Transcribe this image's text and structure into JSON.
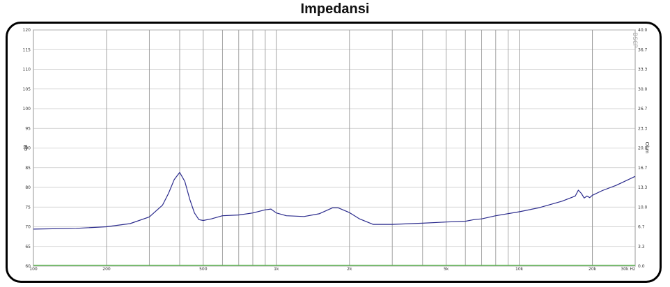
{
  "page": {
    "title": "Impedansi"
  },
  "chart_data": {
    "type": "line",
    "title": "Impedansi",
    "x_scale": "log",
    "xlim": [
      100,
      30000
    ],
    "ylim": [
      60,
      120
    ],
    "ylim_right": [
      0,
      40
    ],
    "ylabel": "dB",
    "ylabel_right": "Ohm",
    "xlabel": "",
    "grid": true,
    "watermark": "DSCP",
    "x_ticks": [
      {
        "v": 100,
        "label": "100"
      },
      {
        "v": 200,
        "label": "200"
      },
      {
        "v": 500,
        "label": "500"
      },
      {
        "v": 1000,
        "label": "1k"
      },
      {
        "v": 2000,
        "label": "2k"
      },
      {
        "v": 5000,
        "label": "5k"
      },
      {
        "v": 10000,
        "label": "10k"
      },
      {
        "v": 20000,
        "label": "20k"
      },
      {
        "v": 30000,
        "label": "30k Hz"
      }
    ],
    "y_ticks": [
      "120",
      "115",
      "110",
      "105",
      "100",
      "95",
      "90",
      "85",
      "80",
      "75",
      "70",
      "65",
      "60"
    ],
    "y_ticks_right": [
      "40.0",
      "36.7",
      "33.3",
      "30.0",
      "26.7",
      "23.3",
      "20.0",
      "16.7",
      "13.3",
      "10.0",
      "6.7",
      "3.3",
      "0.0"
    ],
    "series": [
      {
        "color": "#2a2a8c",
        "axis": "left",
        "x": [
          100,
          150,
          200,
          250,
          300,
          340,
          360,
          380,
          400,
          420,
          440,
          460,
          480,
          500,
          540,
          600,
          700,
          800,
          900,
          950,
          1000,
          1100,
          1300,
          1500,
          1700,
          1800,
          2000,
          2200,
          2500,
          3000,
          4000,
          5000,
          6000,
          6500,
          7000,
          8000,
          10000,
          12000,
          15000,
          17000,
          17500,
          18000,
          18500,
          19000,
          19500,
          20000,
          22000,
          25000,
          30000
        ],
        "y": [
          69.4,
          69.6,
          70.0,
          70.8,
          72.5,
          75.5,
          78.5,
          82.0,
          83.8,
          81.5,
          77.0,
          73.5,
          71.8,
          71.6,
          72.0,
          72.8,
          73.0,
          73.5,
          74.3,
          74.5,
          73.5,
          72.8,
          72.6,
          73.3,
          74.8,
          74.8,
          73.6,
          72.0,
          70.6,
          70.6,
          70.9,
          71.2,
          71.4,
          71.8,
          72.0,
          72.8,
          73.8,
          74.8,
          76.5,
          77.8,
          79.3,
          78.5,
          77.3,
          77.8,
          77.4,
          78.0,
          79.2,
          80.5,
          82.8
        ]
      },
      {
        "color": "#5fba52",
        "axis": "left",
        "x": [
          100,
          30000
        ],
        "y": [
          60.2,
          60.2
        ]
      }
    ]
  }
}
